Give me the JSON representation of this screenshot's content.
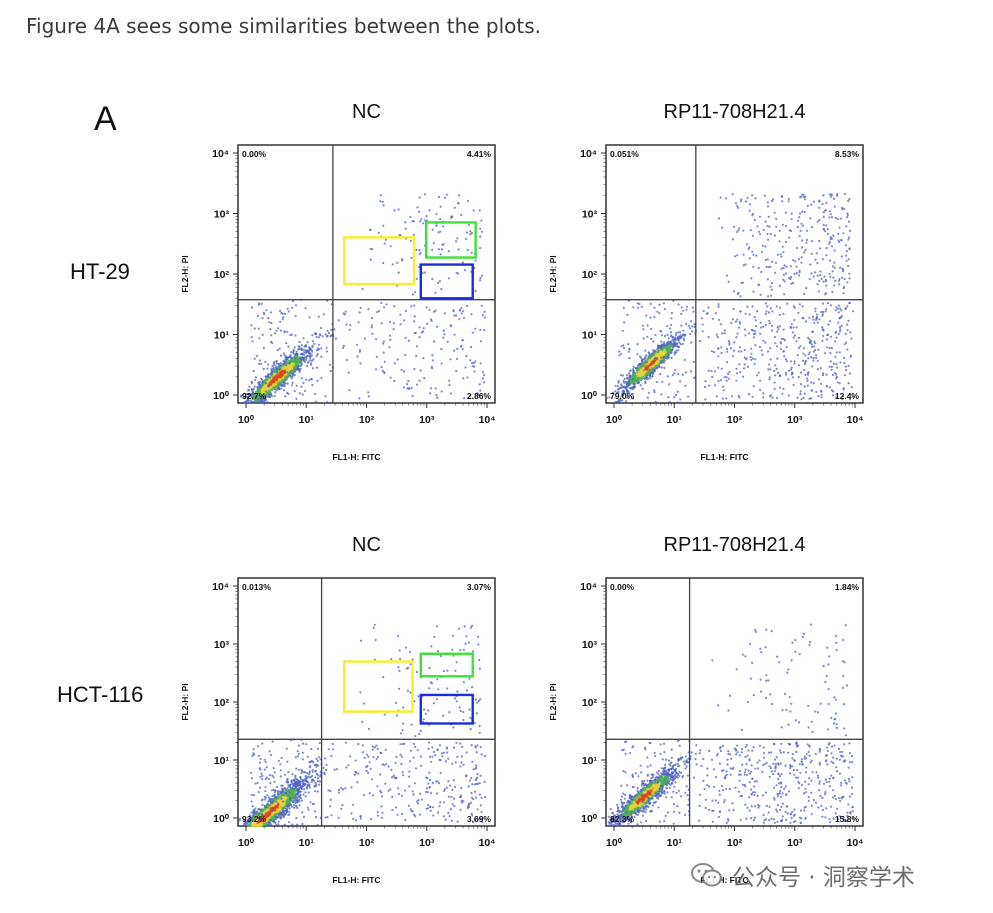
{
  "caption": "Figure 4A sees some similarities between the plots.",
  "panel_letter": "A",
  "cell_lines": [
    "HT-29",
    "HCT-116"
  ],
  "watermark": {
    "text": "公众号 · 洞察学术",
    "icon": "wechat-icon"
  },
  "colors": {
    "dots": "#4f63c2",
    "dense_center": "#d94a1e",
    "dense_mid": "#e8d13a",
    "dense_edge": "#4fb055",
    "box_yellow": "#f7ef2a",
    "box_green": "#3fe03a",
    "box_blue": "#1b2fd6"
  },
  "chart_data": [
    {
      "type": "scatter",
      "title": "NC",
      "row_label": "HT-29",
      "xlabel": "FL1-H: FITC",
      "ylabel": "FL2-H: PI",
      "xscale": "log",
      "yscale": "log",
      "xlim": [
        1,
        10000
      ],
      "ylim": [
        1,
        10000
      ],
      "tick_labels": [
        "10⁰",
        "10¹",
        "10²",
        "10³",
        "10⁴"
      ],
      "gate": {
        "x": 30,
        "y": 40
      },
      "quadrants": {
        "upper_left": "0.00%",
        "upper_right": "4.41%",
        "lower_left": "92.7%",
        "lower_right": "2.86%"
      },
      "highlight_boxes": [
        {
          "color": "yellow",
          "x": [
            45,
            550
          ],
          "y": [
            70,
            370
          ]
        },
        {
          "color": "green",
          "x": [
            850,
            5000
          ],
          "y": [
            180,
            630
          ]
        },
        {
          "color": "blue",
          "x": [
            700,
            4500
          ],
          "y": [
            42,
            140
          ]
        }
      ],
      "density": {
        "center": [
          4,
          2.4
        ],
        "spread": 0.3
      },
      "population": {
        "core": 1000,
        "scatter_ll": 140,
        "scatter_lr": 180,
        "scatter_ur": 130
      }
    },
    {
      "type": "scatter",
      "title": "RP11-708H21.4",
      "row_label": "HT-29",
      "xlabel": "FL1-H: FITC",
      "ylabel": "FL2-H: PI",
      "xscale": "log",
      "yscale": "log",
      "xlim": [
        1,
        10000
      ],
      "ylim": [
        1,
        10000
      ],
      "tick_labels": [
        "10⁰",
        "10¹",
        "10²",
        "10³",
        "10⁴"
      ],
      "gate": {
        "x": 25,
        "y": 40
      },
      "quadrants": {
        "upper_left": "0.051%",
        "upper_right": "8.53%",
        "lower_left": "79.0%",
        "lower_right": "12.4%"
      },
      "highlight_boxes": [],
      "density": {
        "center": [
          5,
          4
        ],
        "spread": 0.26
      },
      "population": {
        "core": 850,
        "scatter_ll": 120,
        "scatter_lr": 420,
        "scatter_ur": 300
      }
    },
    {
      "type": "scatter",
      "title": "NC",
      "row_label": "HCT-116",
      "xlabel": "FL1-H: FITC",
      "ylabel": "FL2-H: PI",
      "xscale": "log",
      "yscale": "log",
      "xlim": [
        1,
        10000
      ],
      "ylim": [
        1,
        10000
      ],
      "tick_labels": [
        "10⁰",
        "10¹",
        "10²",
        "10³",
        "10⁴"
      ],
      "gate": {
        "x": 20,
        "y": 25
      },
      "quadrants": {
        "upper_left": "0.013%",
        "upper_right": "3.07%",
        "lower_left": "93.2%",
        "lower_right": "3.69%"
      },
      "highlight_boxes": [
        {
          "color": "yellow",
          "x": [
            45,
            520
          ],
          "y": [
            70,
            450
          ]
        },
        {
          "color": "green",
          "x": [
            700,
            4500
          ],
          "y": [
            260,
            600
          ]
        },
        {
          "color": "blue",
          "x": [
            700,
            4500
          ],
          "y": [
            45,
            130
          ]
        }
      ],
      "density": {
        "center": [
          3,
          1.6
        ],
        "spread": 0.34
      },
      "population": {
        "core": 1300,
        "scatter_ll": 160,
        "scatter_lr": 280,
        "scatter_ur": 120
      }
    },
    {
      "type": "scatter",
      "title": "RP11-708H21.4",
      "row_label": "HCT-116",
      "xlabel": "FL1-H: FITC",
      "ylabel": "FL2-H: PI",
      "xscale": "log",
      "yscale": "log",
      "xlim": [
        1,
        10000
      ],
      "ylim": [
        1,
        10000
      ],
      "tick_labels": [
        "10⁰",
        "10¹",
        "10²",
        "10³",
        "10⁴"
      ],
      "gate": {
        "x": 20,
        "y": 25
      },
      "quadrants": {
        "upper_left": "0.00%",
        "upper_right": "1.84%",
        "lower_left": "82.3%",
        "lower_right": "15.8%"
      },
      "highlight_boxes": [],
      "density": {
        "center": [
          4,
          3
        ],
        "spread": 0.28
      },
      "population": {
        "core": 950,
        "scatter_ll": 120,
        "scatter_lr": 420,
        "scatter_ur": 90
      }
    }
  ]
}
